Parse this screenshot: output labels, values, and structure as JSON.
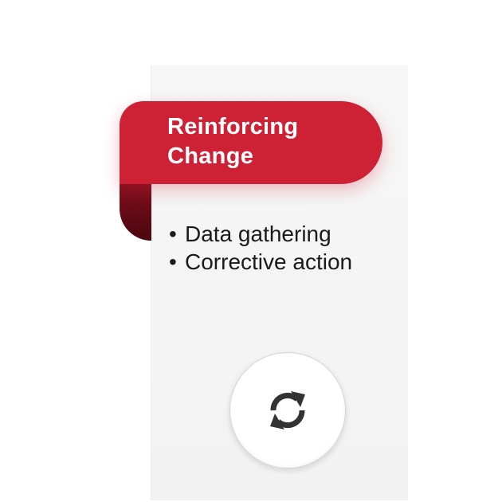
{
  "ribbon": {
    "title": "Reinforcing\nChange",
    "color": "#cf2136"
  },
  "bullets": {
    "items": [
      "Data gathering",
      "Corrective action"
    ]
  },
  "icon": {
    "name": "refresh-icon"
  }
}
